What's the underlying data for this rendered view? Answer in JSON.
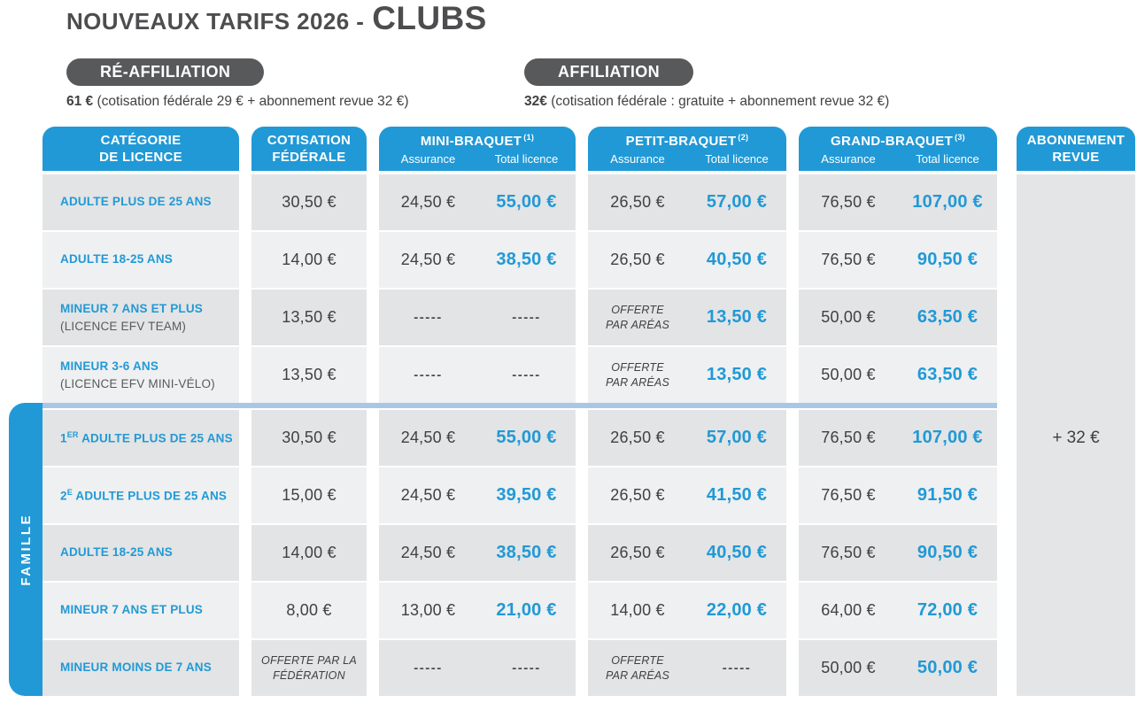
{
  "page": {
    "title_prefix": "NOUVEAUX TARIFS 2026 -",
    "title_emphasis": "CLUBS"
  },
  "offers": {
    "reaffiliation": {
      "label": "RÉ-AFFILIATION",
      "price": "61 €",
      "note": "(cotisation fédérale 29 € + abonnement revue 32 €)"
    },
    "affiliation": {
      "label": "AFFILIATION",
      "price": "32€",
      "note": "(cotisation fédérale : gratuite + abonnement revue 32 €)"
    }
  },
  "table": {
    "columns": {
      "category": {
        "line1": "CATÉGORIE",
        "line2": "DE LICENCE"
      },
      "cotisation": {
        "line1": "COTISATION",
        "line2": "FÉDÉRALE"
      },
      "mini": {
        "name": "MINI-BRAQUET",
        "sup": "(1)",
        "sub1": "Assurance",
        "sub2": "Total licence"
      },
      "petit": {
        "name": "PETIT-BRAQUET",
        "sup": "(2)",
        "sub1": "Assurance",
        "sub2": "Total licence"
      },
      "grand": {
        "name": "GRAND-BRAQUET",
        "sup": "(3)",
        "sub1": "Assurance",
        "sub2": "Total licence"
      },
      "revue": {
        "line1": "ABONNEMENT",
        "line2": "REVUE"
      }
    },
    "famille_label": "FAMILLE",
    "revue_value": "+ 32 €",
    "rows": [
      {
        "group": "standard",
        "label": {
          "text": "ADULTE PLUS DE 25 ANS"
        },
        "cells": [
          {
            "v": "30,50 €"
          },
          {
            "v": "24,50 €"
          },
          {
            "v": "55,00 €"
          },
          {
            "v": "26,50 €"
          },
          {
            "v": "57,00 €"
          },
          {
            "v": "76,50 €"
          },
          {
            "v": "107,00 €"
          }
        ]
      },
      {
        "group": "standard",
        "label": {
          "text": "ADULTE 18-25 ANS"
        },
        "cells": [
          {
            "v": "14,00 €"
          },
          {
            "v": "24,50 €"
          },
          {
            "v": "38,50 €"
          },
          {
            "v": "26,50 €"
          },
          {
            "v": "40,50 €"
          },
          {
            "v": "76,50 €"
          },
          {
            "v": "90,50 €"
          }
        ]
      },
      {
        "group": "standard",
        "label": {
          "text": "MINEUR 7 ANS ET PLUS",
          "sub": "(LICENCE EFV TEAM)"
        },
        "cells": [
          {
            "v": "13,50 €"
          },
          {
            "dash": "-----"
          },
          {
            "dash": "-----"
          },
          {
            "note": [
              "OFFERTE",
              "PAR ARÉAS"
            ]
          },
          {
            "v": "13,50 €"
          },
          {
            "v": "50,00 €"
          },
          {
            "v": "63,50 €"
          }
        ]
      },
      {
        "group": "standard",
        "label": {
          "text": "MINEUR 3-6 ANS",
          "sub": "(LICENCE EFV MINI-VÉLO)"
        },
        "cells": [
          {
            "v": "13,50 €"
          },
          {
            "dash": "-----"
          },
          {
            "dash": "-----"
          },
          {
            "note": [
              "OFFERTE",
              "PAR ARÉAS"
            ]
          },
          {
            "v": "13,50 €"
          },
          {
            "v": "50,00 €"
          },
          {
            "v": "63,50 €"
          }
        ]
      },
      {
        "group": "famille",
        "label": {
          "pre": "1",
          "sup": "ER",
          "text": "ADULTE PLUS DE 25 ANS"
        },
        "cells": [
          {
            "v": "30,50 €"
          },
          {
            "v": "24,50 €"
          },
          {
            "v": "55,00 €"
          },
          {
            "v": "26,50 €"
          },
          {
            "v": "57,00 €"
          },
          {
            "v": "76,50 €"
          },
          {
            "v": "107,00 €"
          }
        ]
      },
      {
        "group": "famille",
        "label": {
          "pre": "2",
          "sup": "E",
          "text": "ADULTE PLUS DE 25 ANS"
        },
        "cells": [
          {
            "v": "15,00 €"
          },
          {
            "v": "24,50 €"
          },
          {
            "v": "39,50 €"
          },
          {
            "v": "26,50 €"
          },
          {
            "v": "41,50 €"
          },
          {
            "v": "76,50 €"
          },
          {
            "v": "91,50 €"
          }
        ]
      },
      {
        "group": "famille",
        "label": {
          "text": "ADULTE 18-25 ANS"
        },
        "cells": [
          {
            "v": "14,00 €"
          },
          {
            "v": "24,50 €"
          },
          {
            "v": "38,50 €"
          },
          {
            "v": "26,50 €"
          },
          {
            "v": "40,50 €"
          },
          {
            "v": "76,50 €"
          },
          {
            "v": "90,50 €"
          }
        ]
      },
      {
        "group": "famille",
        "label": {
          "text": "MINEUR 7 ANS ET PLUS"
        },
        "cells": [
          {
            "v": "8,00 €"
          },
          {
            "v": "13,00 €"
          },
          {
            "v": "21,00 €"
          },
          {
            "v": "14,00 €"
          },
          {
            "v": "22,00 €"
          },
          {
            "v": "64,00 €"
          },
          {
            "v": "72,00 €"
          }
        ]
      },
      {
        "group": "famille",
        "label": {
          "text": "MINEUR MOINS DE 7 ANS"
        },
        "cells": [
          {
            "note": [
              "OFFERTE PAR LA",
              "FÉDÉRATION"
            ]
          },
          {
            "dash": "-----"
          },
          {
            "dash": "-----"
          },
          {
            "note": [
              "OFFERTE",
              "PAR ARÉAS"
            ]
          },
          {
            "dash": "-----"
          },
          {
            "v": "50,00 €"
          },
          {
            "v": "50,00 €"
          }
        ]
      }
    ]
  }
}
